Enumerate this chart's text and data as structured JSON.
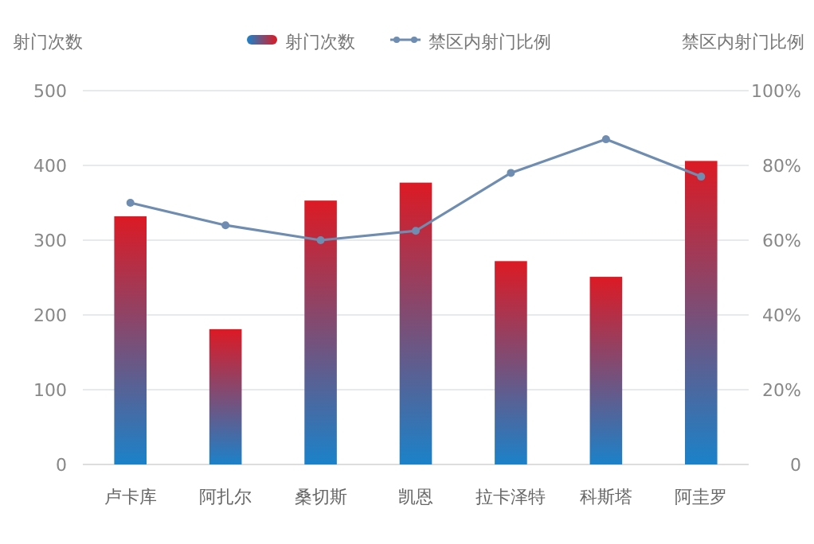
{
  "chart_data": {
    "type": "bar",
    "categories": [
      "卢卡库",
      "阿扎尔",
      "桑切斯",
      "凯恩",
      "拉卡泽特",
      "科斯塔",
      "阿圭罗"
    ],
    "series": [
      {
        "name": "射门次数",
        "color": "#dc1a24",
        "values": [
          332,
          181,
          353,
          377,
          272,
          251,
          406
        ]
      },
      {
        "name": "禁区内射门比例",
        "type": "line",
        "axis": "y2",
        "color": "#6f8db0",
        "marker": "circle",
        "values": [
          70,
          64,
          60,
          62.5,
          78,
          87,
          77
        ]
      }
    ],
    "ylabel": "射门次数",
    "y2label": "禁区内射门比例",
    "ylim": [
      0,
      500
    ],
    "yticks": [
      0,
      100,
      200,
      300,
      400,
      500
    ],
    "y2lim": [
      0,
      100
    ],
    "y2ticks": [
      {
        "value": 0,
        "label": "0"
      },
      {
        "value": 20,
        "label": "20%"
      },
      {
        "value": 40,
        "label": "40%"
      },
      {
        "value": 60,
        "label": "60%"
      },
      {
        "value": 80,
        "label": "80%"
      },
      {
        "value": 100,
        "label": "100%"
      }
    ],
    "grid": "y",
    "legend": "top"
  }
}
